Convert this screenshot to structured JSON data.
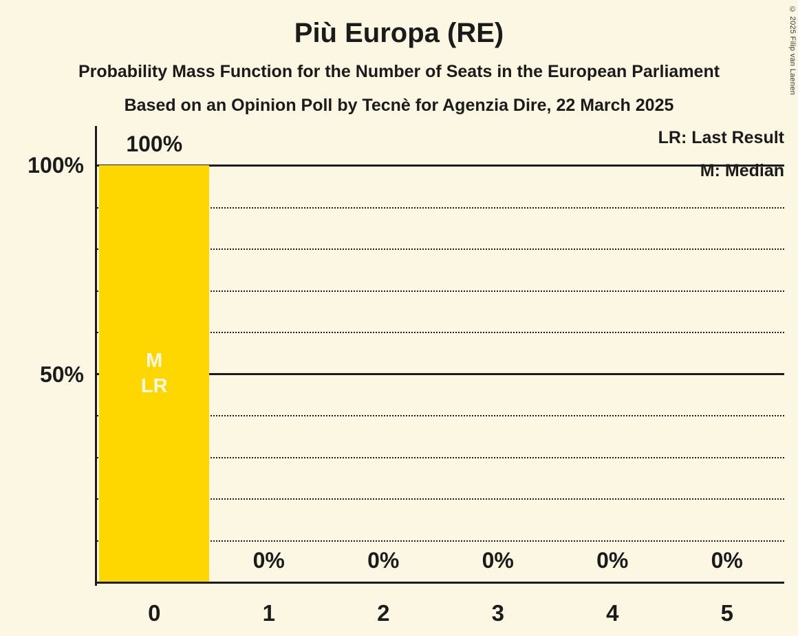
{
  "title": "Più Europa (RE)",
  "subtitle1": "Probability Mass Function for the Number of Seats in the European Parliament",
  "subtitle2": "Based on an Opinion Poll by Tecnè for Agenzia Dire, 22 March 2025",
  "copyright": "© 2025 Filip van Laenen",
  "legend": {
    "lr": "LR: Last Result",
    "m": "M: Median"
  },
  "chart_data": {
    "type": "bar",
    "title": "Più Europa (RE)",
    "categories": [
      "0",
      "1",
      "2",
      "3",
      "4",
      "5"
    ],
    "values": [
      100,
      0,
      0,
      0,
      0,
      0
    ],
    "value_labels": [
      "100%",
      "0%",
      "0%",
      "0%",
      "0%",
      "0%"
    ],
    "xlabel": "",
    "ylabel": "",
    "ylim": [
      0,
      100
    ],
    "yticks": [
      {
        "value": 100,
        "label": "100%"
      },
      {
        "value": 50,
        "label": "50%"
      }
    ],
    "solid_gridlines": [
      100,
      50,
      0
    ],
    "dotted_gridlines": [
      90,
      80,
      70,
      60,
      40,
      30,
      20,
      10
    ],
    "legend_position": "top-right",
    "bar_color": "#FFD700",
    "background_color": "#FCF7E2",
    "annotations": {
      "bar_index": 0,
      "median": "M",
      "last_result": "LR"
    }
  }
}
